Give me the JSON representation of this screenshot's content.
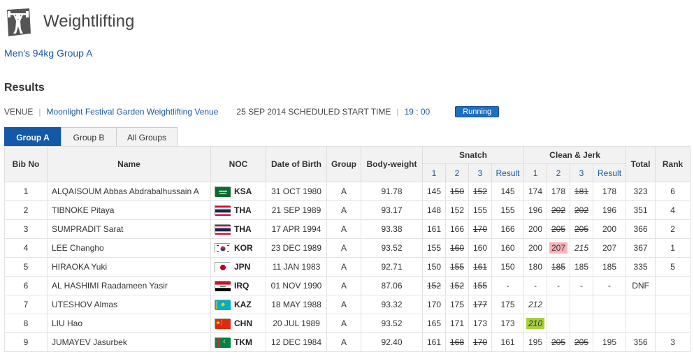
{
  "header": {
    "title": "Weightlifting",
    "icon": "weightlifter-icon"
  },
  "event": {
    "name": "Men's 94kg Group A"
  },
  "results_title": "Results",
  "venue": {
    "label": "VENUE",
    "name": "Moonlight Festival Garden Weightlifting Venue",
    "date_label": "25 SEP 2014 SCHEDULED START TIME",
    "time": "19 : 00",
    "status": "Running"
  },
  "tabs": [
    {
      "label": "Group A",
      "active": true
    },
    {
      "label": "Group B",
      "active": false
    },
    {
      "label": "All Groups",
      "active": false
    }
  ],
  "columns": {
    "bib": "Bib No",
    "name": "Name",
    "noc": "NOC",
    "dob": "Date of Birth",
    "group": "Group",
    "bodyweight": "Body-weight",
    "snatch": "Snatch",
    "cj": "Clean & Jerk",
    "total": "Total",
    "rank": "Rank",
    "a1": "1",
    "a2": "2",
    "a3": "3",
    "result": "Result"
  },
  "rows": [
    {
      "bib": "1",
      "name": "ALQAISOUM Abbas Abdrabalhussain A",
      "noc": "KSA",
      "flag": "ksa",
      "dob": "31 OCT 1980",
      "group": "A",
      "bw": "91.78",
      "sn": [
        {
          "v": "145"
        },
        {
          "v": "150",
          "s": "fail"
        },
        {
          "v": "152",
          "s": "fail"
        }
      ],
      "snr": "145",
      "cj": [
        {
          "v": "174"
        },
        {
          "v": "178"
        },
        {
          "v": "181",
          "s": "fail"
        }
      ],
      "cjr": "178",
      "total": "323",
      "rank": "6"
    },
    {
      "bib": "2",
      "name": "TIBNOKE Pitaya",
      "noc": "THA",
      "flag": "tha",
      "dob": "21 SEP 1989",
      "group": "A",
      "bw": "93.17",
      "sn": [
        {
          "v": "148"
        },
        {
          "v": "152"
        },
        {
          "v": "155"
        }
      ],
      "snr": "155",
      "cj": [
        {
          "v": "196"
        },
        {
          "v": "202",
          "s": "fail"
        },
        {
          "v": "202",
          "s": "fail"
        }
      ],
      "cjr": "196",
      "total": "351",
      "rank": "4"
    },
    {
      "bib": "3",
      "name": "SUMPRADIT Sarat",
      "noc": "THA",
      "flag": "tha",
      "dob": "17 APR 1994",
      "group": "A",
      "bw": "93.38",
      "sn": [
        {
          "v": "161"
        },
        {
          "v": "166"
        },
        {
          "v": "170",
          "s": "fail"
        }
      ],
      "snr": "166",
      "cj": [
        {
          "v": "200"
        },
        {
          "v": "205",
          "s": "fail"
        },
        {
          "v": "205",
          "s": "fail"
        }
      ],
      "cjr": "200",
      "total": "366",
      "rank": "2"
    },
    {
      "bib": "4",
      "name": "LEE Changho",
      "noc": "KOR",
      "flag": "kor",
      "dob": "23 DEC 1989",
      "group": "A",
      "bw": "93.52",
      "sn": [
        {
          "v": "155"
        },
        {
          "v": "160",
          "s": "fail"
        },
        {
          "v": "160"
        }
      ],
      "snr": "160",
      "cj": [
        {
          "v": "200"
        },
        {
          "v": "207",
          "s": "red"
        },
        {
          "v": "215",
          "s": "pending"
        }
      ],
      "cjr": "207",
      "total": "367",
      "rank": "1"
    },
    {
      "bib": "5",
      "name": "HIRAOKA Yuki",
      "noc": "JPN",
      "flag": "jpn",
      "dob": "11 JAN 1983",
      "group": "A",
      "bw": "92.71",
      "sn": [
        {
          "v": "150"
        },
        {
          "v": "155",
          "s": "fail"
        },
        {
          "v": "161",
          "s": "fail"
        }
      ],
      "snr": "150",
      "cj": [
        {
          "v": "180"
        },
        {
          "v": "185",
          "s": "fail"
        },
        {
          "v": "185"
        }
      ],
      "cjr": "185",
      "total": "335",
      "rank": "5"
    },
    {
      "bib": "6",
      "name": "AL HASHIMI Raadameen Yasir",
      "noc": "IRQ",
      "flag": "irq",
      "dob": "01 NOV 1990",
      "group": "A",
      "bw": "87.06",
      "sn": [
        {
          "v": "152",
          "s": "fail"
        },
        {
          "v": "152",
          "s": "fail"
        },
        {
          "v": "155",
          "s": "fail"
        }
      ],
      "snr": "-",
      "cj": [
        {
          "v": "-"
        },
        {
          "v": "-"
        },
        {
          "v": "-"
        }
      ],
      "cjr": "-",
      "total": "DNF",
      "rank": ""
    },
    {
      "bib": "7",
      "name": "UTESHOV Almas",
      "noc": "KAZ",
      "flag": "kaz",
      "dob": "18 MAY 1988",
      "group": "A",
      "bw": "93.32",
      "sn": [
        {
          "v": "170"
        },
        {
          "v": "175"
        },
        {
          "v": "177",
          "s": "fail"
        }
      ],
      "snr": "175",
      "cj": [
        {
          "v": "212",
          "s": "pending"
        },
        {
          "v": ""
        },
        {
          "v": ""
        }
      ],
      "cjr": "",
      "total": "",
      "rank": ""
    },
    {
      "bib": "8",
      "name": "LIU Hao",
      "noc": "CHN",
      "flag": "chn",
      "dob": "20 JUL 1989",
      "group": "A",
      "bw": "93.52",
      "sn": [
        {
          "v": "165"
        },
        {
          "v": "171"
        },
        {
          "v": "173"
        }
      ],
      "snr": "173",
      "cj": [
        {
          "v": "210",
          "s": "green"
        },
        {
          "v": ""
        },
        {
          "v": ""
        }
      ],
      "cjr": "",
      "total": "",
      "rank": ""
    },
    {
      "bib": "9",
      "name": "JUMAYEV Jasurbek",
      "noc": "TKM",
      "flag": "tkm",
      "dob": "12 DEC 1984",
      "group": "A",
      "bw": "92.40",
      "sn": [
        {
          "v": "161"
        },
        {
          "v": "168",
          "s": "fail"
        },
        {
          "v": "170",
          "s": "fail"
        }
      ],
      "snr": "161",
      "cj": [
        {
          "v": "195"
        },
        {
          "v": "205",
          "s": "fail"
        },
        {
          "v": "205",
          "s": "fail"
        }
      ],
      "cjr": "195",
      "total": "356",
      "rank": "3"
    }
  ],
  "colors": {
    "accent": "#1458a8",
    "link": "#1a5aa0",
    "highlight_red": "#f7b3b8",
    "highlight_green": "#a6d13a"
  }
}
